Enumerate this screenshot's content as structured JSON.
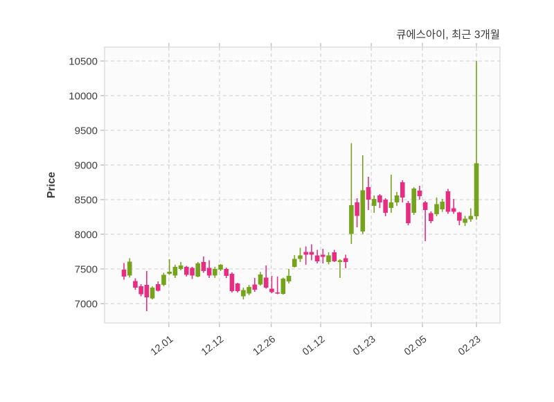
{
  "title": "큐에스아이, 최근 3개월",
  "y_axis": {
    "label": "Price",
    "tick_labels": [
      "10500",
      "10000",
      "9500",
      "9000",
      "8500",
      "8000",
      "7500",
      "7000"
    ]
  },
  "x_axis": {
    "tick_labels": [
      "12.01",
      "12.12",
      "12.26",
      "01.12",
      "01.23",
      "02.05",
      "02.23"
    ]
  },
  "chart_data": {
    "type": "candlestick",
    "title": "큐에스아이, 최근 3개월",
    "ylabel": "Price",
    "ylim": [
      6720,
      10700
    ],
    "y_ticks": [
      7000,
      7500,
      8000,
      8500,
      9000,
      9500,
      10000,
      10500
    ],
    "grid": "dashed-both-axes",
    "up_color": "#75a41c",
    "down_color": "#e52e82",
    "candle_format": [
      "open",
      "high",
      "low",
      "close"
    ],
    "x_ticks": [
      {
        "label": "12.01",
        "i": 7.9
      },
      {
        "label": "12.12",
        "i": 16.8
      },
      {
        "label": "12.26",
        "i": 25.9
      },
      {
        "label": "01.12",
        "i": 34.6
      },
      {
        "label": "01.23",
        "i": 43.5
      },
      {
        "label": "02.05",
        "i": 52.5
      },
      {
        "label": "02.23",
        "i": 62.0
      }
    ],
    "candles": [
      [
        7490,
        7585,
        7345,
        7390
      ],
      [
        7405,
        7655,
        7375,
        7605
      ],
      [
        7325,
        7365,
        7200,
        7230
      ],
      [
        7250,
        7280,
        7105,
        7135
      ],
      [
        7270,
        7470,
        6890,
        7090
      ],
      [
        7075,
        7250,
        7060,
        7230
      ],
      [
        7280,
        7320,
        7175,
        7185
      ],
      [
        7270,
        7445,
        7250,
        7415
      ],
      [
        7430,
        7640,
        7415,
        7460
      ],
      [
        7405,
        7560,
        7370,
        7530
      ],
      [
        7500,
        7600,
        7480,
        7550
      ],
      [
        7530,
        7545,
        7390,
        7415
      ],
      [
        7515,
        7530,
        7355,
        7405
      ],
      [
        7390,
        7600,
        7380,
        7580
      ],
      [
        7600,
        7680,
        7445,
        7470
      ],
      [
        7515,
        7625,
        7370,
        7405
      ],
      [
        7405,
        7530,
        7370,
        7500
      ],
      [
        7490,
        7570,
        7470,
        7560
      ],
      [
        7500,
        7520,
        7370,
        7400
      ],
      [
        7430,
        7450,
        7160,
        7180
      ],
      [
        7290,
        7300,
        7160,
        7180
      ],
      [
        7105,
        7230,
        7060,
        7195
      ],
      [
        7145,
        7270,
        7120,
        7240
      ],
      [
        7275,
        7370,
        7170,
        7200
      ],
      [
        7275,
        7455,
        7260,
        7420
      ],
      [
        7375,
        7550,
        7215,
        7230
      ],
      [
        7215,
        7400,
        7150,
        7165
      ],
      [
        7160,
        7390,
        7135,
        7145
      ],
      [
        7140,
        7375,
        7130,
        7360
      ],
      [
        7320,
        7500,
        7290,
        7400
      ],
      [
        7530,
        7700,
        7520,
        7645
      ],
      [
        7645,
        7805,
        7600,
        7695
      ],
      [
        7745,
        7825,
        7560,
        7705
      ],
      [
        7745,
        7855,
        7625,
        7705
      ],
      [
        7695,
        7775,
        7580,
        7610
      ],
      [
        7705,
        7790,
        7580,
        7675
      ],
      [
        7600,
        7740,
        7565,
        7695
      ],
      [
        7740,
        7775,
        7600,
        7610
      ],
      [
        7600,
        7640,
        7370,
        7625
      ],
      [
        7655,
        7705,
        7510,
        7600
      ],
      [
        8005,
        9315,
        7860,
        8420
      ],
      [
        8460,
        8520,
        8100,
        8265
      ],
      [
        8040,
        9140,
        8005,
        8635
      ],
      [
        8680,
        8830,
        8350,
        8500
      ],
      [
        8410,
        8560,
        8310,
        8510
      ],
      [
        8560,
        8580,
        8380,
        8460
      ],
      [
        8500,
        8520,
        8260,
        8310
      ],
      [
        8380,
        8860,
        8310,
        8460
      ],
      [
        8460,
        8610,
        8410,
        8560
      ],
      [
        8750,
        8780,
        8460,
        8530
      ],
      [
        8450,
        8480,
        8130,
        8160
      ],
      [
        8310,
        8680,
        8280,
        8660
      ],
      [
        8630,
        8700,
        8500,
        8550
      ],
      [
        8460,
        8480,
        7900,
        8350
      ],
      [
        8305,
        8330,
        8160,
        8190
      ],
      [
        8290,
        8530,
        8260,
        8435
      ],
      [
        8360,
        8510,
        8325,
        8470
      ],
      [
        8620,
        8655,
        8295,
        8325
      ],
      [
        8375,
        8510,
        8295,
        8325
      ],
      [
        8315,
        8325,
        8130,
        8195
      ],
      [
        8165,
        8265,
        8120,
        8225
      ],
      [
        8215,
        8375,
        8180,
        8265
      ],
      [
        8260,
        10500,
        8210,
        9025
      ]
    ]
  },
  "style_colors": {
    "plot_bg": "#fbfbfb",
    "grid": "#cdcdcd",
    "border": "#dedede",
    "tick": "#b5b5b5",
    "text": "#3d3d3d"
  }
}
